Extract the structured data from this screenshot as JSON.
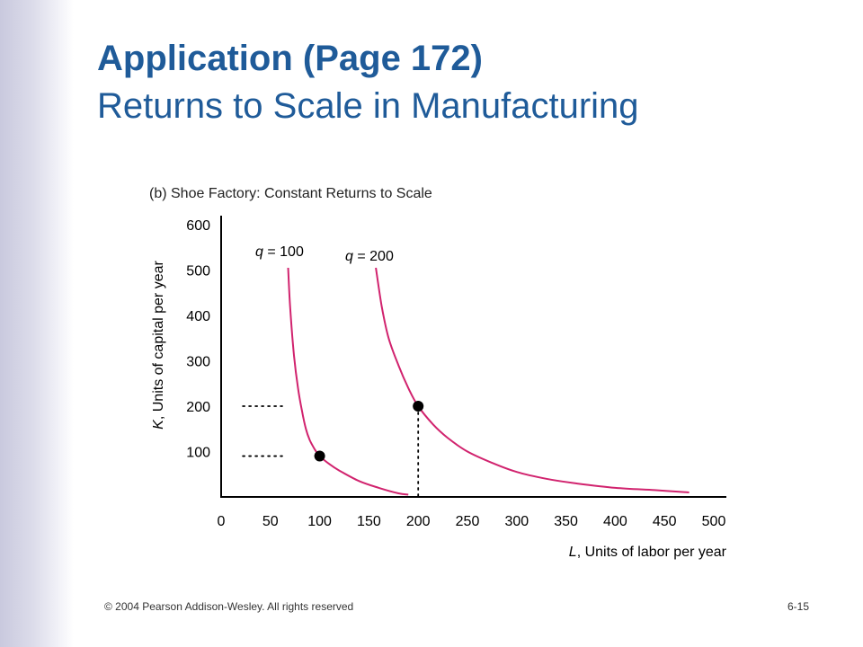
{
  "slide": {
    "title": "Application (Page 172)",
    "subtitle": "Returns to Scale in Manufacturing",
    "footer_left": "© 2004 Pearson Addison-Wesley. All rights reserved",
    "footer_right": "6-15"
  },
  "colors": {
    "title": "#1f5b99",
    "curve": "#d1236e",
    "axis": "#000000"
  },
  "chart_data": {
    "type": "line",
    "title": "(b) Shoe Factory: Constant Returns to Scale",
    "xlabel_var": "L",
    "xlabel_rest": ", Units of labor per year",
    "ylabel_var": "K",
    "ylabel_rest": ", Units of capital per year",
    "xlim": [
      0,
      500
    ],
    "ylim": [
      0,
      600
    ],
    "x_ticks": [
      0,
      50,
      100,
      150,
      200,
      250,
      300,
      350,
      400,
      450,
      500
    ],
    "y_ticks": [
      100,
      200,
      300,
      400,
      500,
      600
    ],
    "grid": false,
    "series": [
      {
        "name": "q = 100",
        "label_var": "q",
        "label_rest": " = 100",
        "x": [
          68,
          70,
          74,
          78,
          82,
          86,
          90,
          95,
          100,
          110,
          120,
          140,
          160,
          180,
          190
        ],
        "y": [
          505,
          420,
          310,
          240,
          190,
          150,
          125,
          105,
          90,
          72,
          58,
          35,
          20,
          8,
          5
        ]
      },
      {
        "name": "q = 200",
        "label_var": "q",
        "label_rest": " = 200",
        "x": [
          157,
          163,
          170,
          180,
          190,
          200,
          215,
          230,
          250,
          275,
          300,
          330,
          360,
          400,
          440,
          475
        ],
        "y": [
          505,
          420,
          350,
          290,
          240,
          200,
          160,
          130,
          100,
          75,
          55,
          40,
          30,
          20,
          15,
          10
        ]
      }
    ],
    "points": [
      {
        "x": 100,
        "y": 90
      },
      {
        "x": 200,
        "y": 200
      }
    ],
    "dotted_lines": [
      {
        "from": [
          22,
          200
        ],
        "to": [
          62,
          200
        ]
      },
      {
        "from": [
          22,
          90
        ],
        "to": [
          62,
          90
        ]
      },
      {
        "from": [
          200,
          200
        ],
        "to": [
          200,
          0
        ]
      }
    ]
  }
}
